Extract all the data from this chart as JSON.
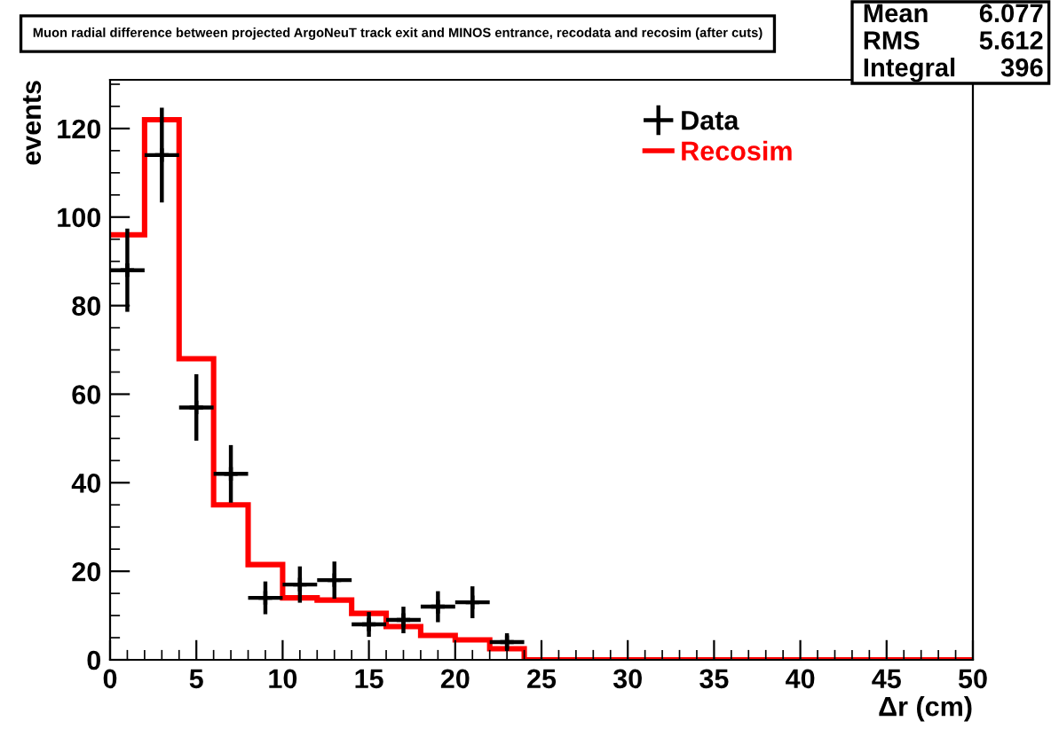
{
  "chart_data": {
    "type": "histogram",
    "title": "Muon radial difference between projected ArgoNeuT track exit and MINOS entrance, recodata and recosim (after cuts)",
    "xlabel": "Δr (cm)",
    "ylabel": "events",
    "bins": [
      0,
      2,
      4,
      6,
      8,
      10,
      12,
      14,
      16,
      18,
      20,
      22,
      24,
      26,
      28,
      30,
      32,
      34,
      36,
      38,
      40,
      42,
      44,
      46,
      48,
      50
    ],
    "series": [
      {
        "name": "Data",
        "type": "scatter",
        "color": "#000000",
        "marker": "cross",
        "x": [
          1,
          3,
          5,
          7,
          9,
          11,
          13,
          15,
          17,
          19,
          21,
          23
        ],
        "values": [
          88,
          114,
          57,
          42,
          14,
          17,
          18,
          8,
          9,
          12,
          13,
          4
        ],
        "errors": [
          9.4,
          10.7,
          7.5,
          6.5,
          3.7,
          4.1,
          4.2,
          2.8,
          3,
          3.5,
          3.6,
          2
        ],
        "xerrors": [
          1,
          1,
          1,
          1,
          1,
          1,
          1,
          1,
          1,
          1,
          1,
          1
        ]
      },
      {
        "name": "Recosim",
        "color": "#ff0000",
        "values": [
          96,
          122,
          68,
          35,
          21.5,
          14,
          13.5,
          10.5,
          7.5,
          5.5,
          4.5,
          2.5,
          0,
          0,
          0,
          0,
          0,
          0,
          0,
          0,
          0,
          0,
          0,
          0,
          0
        ]
      }
    ],
    "xlim": [
      0,
      50
    ],
    "xticks": [
      0,
      5,
      10,
      15,
      20,
      25,
      30,
      35,
      40,
      45,
      50
    ],
    "ylim": [
      0,
      131
    ],
    "yticks": [
      0,
      20,
      40,
      60,
      80,
      100,
      120
    ],
    "grid": false,
    "legend": "top right",
    "annotations": [
      "Mean",
      "6.077",
      "RMS",
      "5.612",
      "Integral",
      "396"
    ]
  }
}
